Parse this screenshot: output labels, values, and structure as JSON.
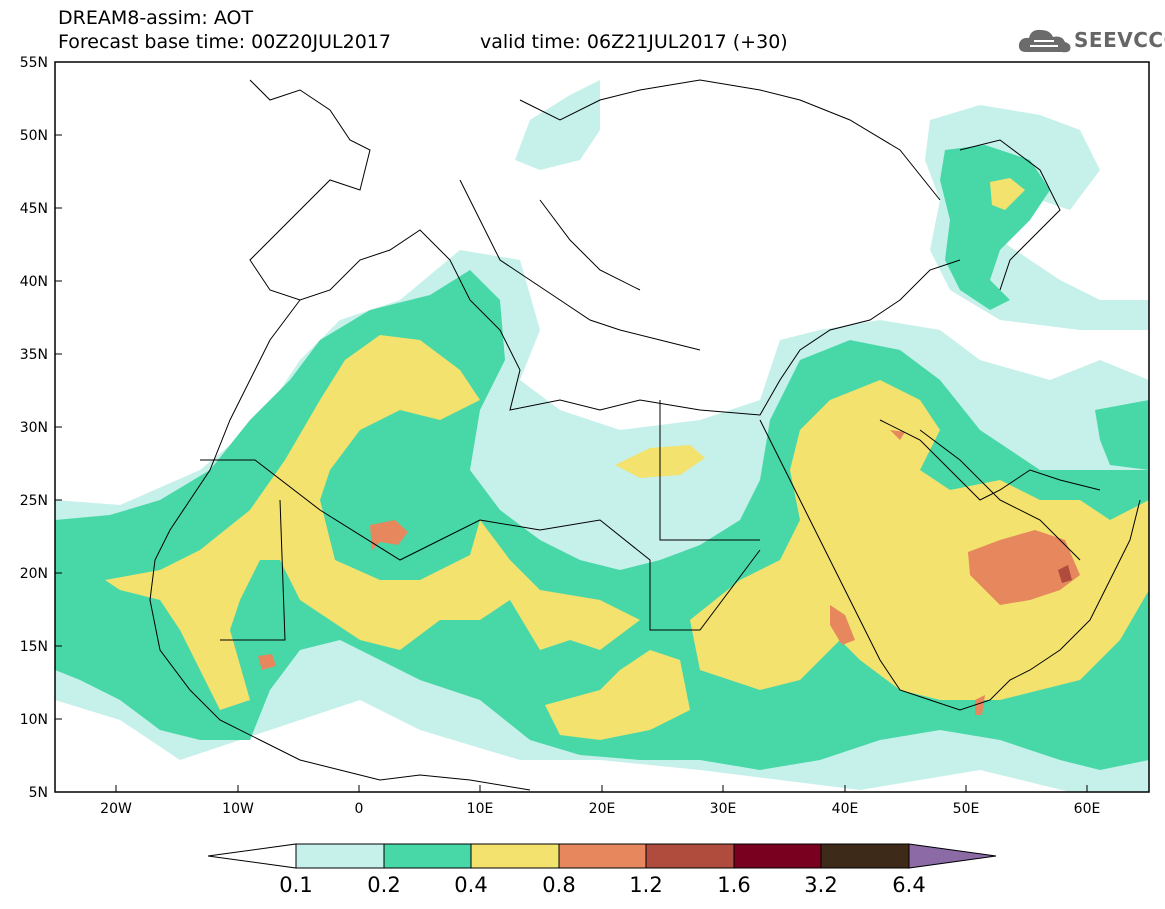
{
  "header": {
    "title": "DREAM8-assim: AOT",
    "base_time": "Forecast base time: 00Z20JUL2017",
    "valid_time": "valid time: 06Z21JUL2017 (+30)",
    "logo_text": "SEEVCCC"
  },
  "axes": {
    "lat_ticks": [
      "55N",
      "50N",
      "45N",
      "40N",
      "35N",
      "30N",
      "25N",
      "20N",
      "15N",
      "10N",
      "5N"
    ],
    "lon_ticks": [
      "20W",
      "10W",
      "0",
      "10E",
      "20E",
      "30E",
      "40E",
      "50E",
      "60E"
    ]
  },
  "colorbar": {
    "labels": [
      "0.1",
      "0.2",
      "0.4",
      "0.8",
      "1.2",
      "1.6",
      "3.2",
      "6.4"
    ],
    "colors": [
      "#ffffff",
      "#c6f0ea",
      "#48d8a8",
      "#f3e26e",
      "#e6875e",
      "#b04c3e",
      "#7a0020",
      "#3e2a18",
      "#8b6aa6"
    ]
  },
  "palette": {
    "water_light": "#c6f0ea",
    "green": "#48d8a8",
    "yellow": "#f3e26e",
    "orange": "#e6875e",
    "brown": "#b04c3e"
  }
}
